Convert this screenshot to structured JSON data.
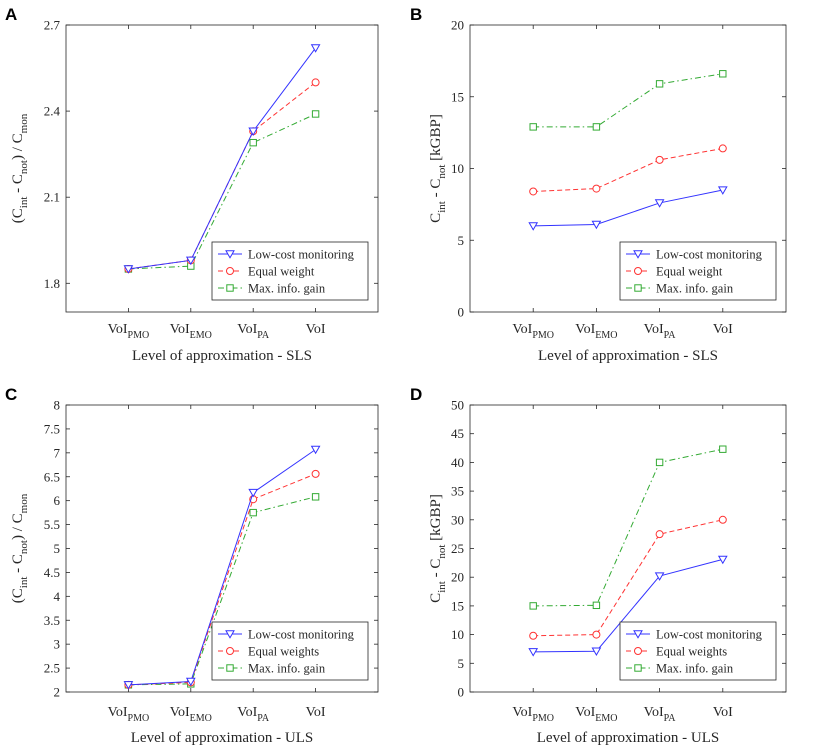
{
  "colors": {
    "low_cost": "#3333ff",
    "equal": "#ff3333",
    "max_info": "#33aa33",
    "axis": "#262626"
  },
  "chart_data": [
    {
      "panel": "A",
      "type": "line",
      "categories": [
        "VoI_PMO",
        "VoI_EMO",
        "VoI_PA",
        "VoI"
      ],
      "category_labels": [
        {
          "base": "VoI",
          "sub": "PMO"
        },
        {
          "base": "VoI",
          "sub": "EMO"
        },
        {
          "base": "VoI",
          "sub": "PA"
        },
        {
          "base": "VoI",
          "sub": ""
        }
      ],
      "xlabel": "Level of approximation - SLS",
      "ylabel_parts": [
        "(C",
        "int",
        " - C",
        "not",
        ") / C",
        "mon"
      ],
      "ylim": [
        1.7,
        2.7
      ],
      "yticks": [
        1.8,
        2.1,
        2.4,
        2.7
      ],
      "ytick_labels": [
        "1.8",
        "2.1",
        "2.4",
        "2.7"
      ],
      "legend_position": "bottom-right",
      "series": [
        {
          "name": "Low-cost monitoring",
          "marker": "triangle-down",
          "dash": "solid",
          "values": [
            1.85,
            1.88,
            2.33,
            2.62
          ]
        },
        {
          "name": "Equal weight",
          "marker": "circle",
          "dash": "dashed",
          "values": [
            1.85,
            1.88,
            2.33,
            2.5
          ]
        },
        {
          "name": "Max. info. gain",
          "marker": "square",
          "dash": "dashdot",
          "values": [
            1.85,
            1.86,
            2.29,
            2.39
          ]
        }
      ]
    },
    {
      "panel": "B",
      "type": "line",
      "categories": [
        "VoI_PMO",
        "VoI_EMO",
        "VoI_PA",
        "VoI"
      ],
      "category_labels": [
        {
          "base": "VoI",
          "sub": "PMO"
        },
        {
          "base": "VoI",
          "sub": "EMO"
        },
        {
          "base": "VoI",
          "sub": "PA"
        },
        {
          "base": "VoI",
          "sub": ""
        }
      ],
      "xlabel": "Level of approximation - SLS",
      "ylabel_parts": [
        "C",
        "int",
        " - C",
        "not",
        "  [kGBP]",
        ""
      ],
      "ylim": [
        0,
        20
      ],
      "yticks": [
        0,
        5,
        10,
        15,
        20
      ],
      "ytick_labels": [
        "0",
        "5",
        "10",
        "15",
        "20"
      ],
      "legend_position": "bottom-right",
      "series": [
        {
          "name": "Low-cost monitoring",
          "marker": "triangle-down",
          "dash": "solid",
          "values": [
            6.0,
            6.1,
            7.6,
            8.5
          ]
        },
        {
          "name": "Equal weight",
          "marker": "circle",
          "dash": "dashed",
          "values": [
            8.4,
            8.6,
            10.6,
            11.4
          ]
        },
        {
          "name": "Max. info. gain",
          "marker": "square",
          "dash": "dashdot",
          "values": [
            12.9,
            12.9,
            15.9,
            16.6
          ]
        }
      ]
    },
    {
      "panel": "C",
      "type": "line",
      "categories": [
        "VoI_PMO",
        "VoI_EMO",
        "VoI_PA",
        "VoI"
      ],
      "category_labels": [
        {
          "base": "VoI",
          "sub": "PMO"
        },
        {
          "base": "VoI",
          "sub": "EMO"
        },
        {
          "base": "VoI",
          "sub": "PA"
        },
        {
          "base": "VoI",
          "sub": ""
        }
      ],
      "xlabel": "Level of approximation - ULS",
      "ylabel_parts": [
        "(C",
        "int",
        " - C",
        "not",
        ") / C",
        "mon"
      ],
      "ylim": [
        2,
        8
      ],
      "yticks": [
        2,
        2.5,
        3,
        3.5,
        4,
        4.5,
        5,
        5.5,
        6,
        6.5,
        7,
        7.5,
        8
      ],
      "ytick_labels": [
        "2",
        "2.5",
        "3",
        "3.5",
        "4",
        "4.5",
        "5",
        "5.5",
        "6",
        "6.5",
        "7",
        "7.5",
        "8"
      ],
      "legend_position": "bottom-right",
      "series": [
        {
          "name": "Low-cost monitoring",
          "marker": "triangle-down",
          "dash": "solid",
          "values": [
            2.15,
            2.22,
            6.17,
            7.07
          ]
        },
        {
          "name": "Equal weights",
          "marker": "circle",
          "dash": "dashed",
          "values": [
            2.15,
            2.2,
            6.03,
            6.56
          ]
        },
        {
          "name": "Max. info. gain",
          "marker": "square",
          "dash": "dashdot",
          "values": [
            2.15,
            2.17,
            5.75,
            6.08
          ]
        }
      ]
    },
    {
      "panel": "D",
      "type": "line",
      "categories": [
        "VoI_PMO",
        "VoI_EMO",
        "VoI_PA",
        "VoI"
      ],
      "category_labels": [
        {
          "base": "VoI",
          "sub": "PMO"
        },
        {
          "base": "VoI",
          "sub": "EMO"
        },
        {
          "base": "VoI",
          "sub": "PA"
        },
        {
          "base": "VoI",
          "sub": ""
        }
      ],
      "xlabel": "Level of approximation - ULS",
      "ylabel_parts": [
        "C",
        "int",
        " - C",
        "not",
        "  [kGBP]",
        ""
      ],
      "ylim": [
        0,
        50
      ],
      "yticks": [
        0,
        5,
        10,
        15,
        20,
        25,
        30,
        35,
        40,
        45,
        50
      ],
      "ytick_labels": [
        "0",
        "5",
        "10",
        "15",
        "20",
        "25",
        "30",
        "35",
        "40",
        "45",
        "50"
      ],
      "legend_position": "bottom-right",
      "series": [
        {
          "name": "Low-cost monitoring",
          "marker": "triangle-down",
          "dash": "solid",
          "values": [
            7.0,
            7.1,
            20.2,
            23.1
          ]
        },
        {
          "name": "Equal weights",
          "marker": "circle",
          "dash": "dashed",
          "values": [
            9.8,
            10.0,
            27.5,
            30.0
          ]
        },
        {
          "name": "Max. info. gain",
          "marker": "square",
          "dash": "dashdot",
          "values": [
            15.0,
            15.1,
            40.0,
            42.3
          ]
        }
      ]
    }
  ]
}
